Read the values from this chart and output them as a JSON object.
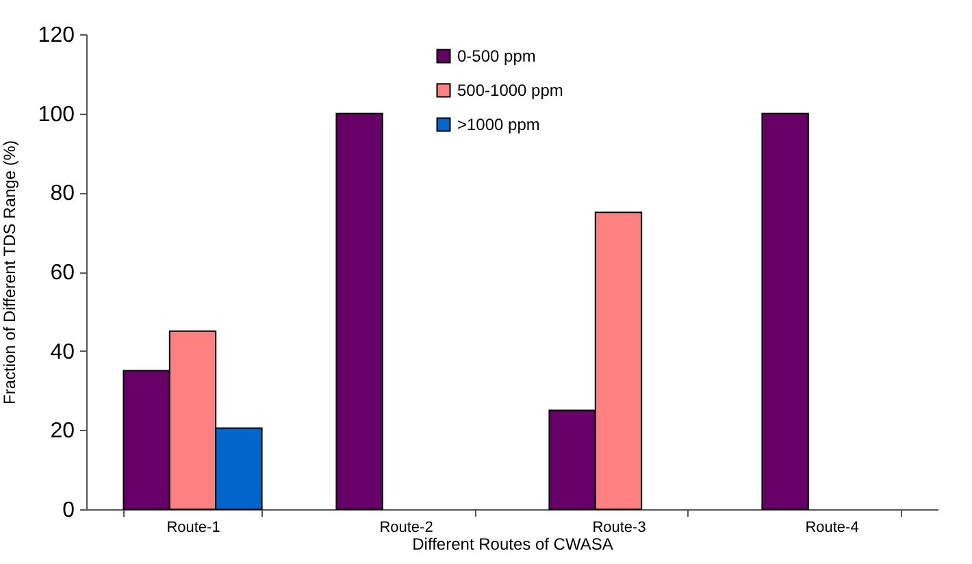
{
  "chart_data": {
    "type": "bar",
    "xlabel": "Different Routes of CWASA",
    "ylabel": "Fraction of Different TDS Range (%)",
    "categories": [
      "Route-1",
      "Route-2",
      "Route-3",
      "Route-4"
    ],
    "series": [
      {
        "name": "0-500 ppm",
        "color": "#660066",
        "values": [
          35,
          100,
          25,
          100
        ]
      },
      {
        "name": "500-1000 ppm",
        "color": "#ff8080",
        "values": [
          45,
          null,
          75,
          null
        ]
      },
      {
        "name": ">1000 ppm",
        "color": "#0066cc",
        "values": [
          20.5,
          null,
          null,
          null
        ]
      }
    ],
    "ylim": [
      0,
      120
    ],
    "yticks": [
      0,
      20,
      40,
      60,
      80,
      100,
      120
    ],
    "legend": "top"
  }
}
